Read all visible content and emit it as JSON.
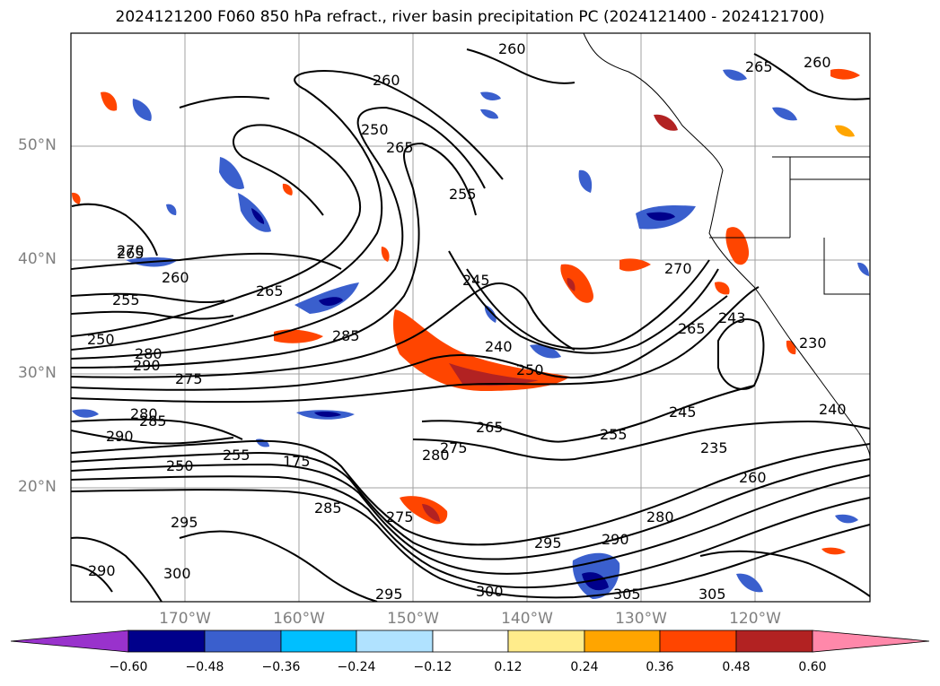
{
  "title": "2024121200 F060 850 hPa refract., river basin precipitation PC (2024121400 - 2024121700)",
  "lat_labels": [
    "50°N",
    "40°N",
    "30°N",
    "20°N"
  ],
  "lon_labels": [
    "170°W",
    "160°W",
    "150°W",
    "140°W",
    "130°W",
    "120°W"
  ],
  "contour_labels": [
    "260",
    "260",
    "265",
    "260",
    "250",
    "255",
    "265",
    "260",
    "255",
    "250",
    "280",
    "290",
    "275",
    "280",
    "285",
    "290",
    "265",
    "250",
    "255",
    "285",
    "245",
    "240",
    "250",
    "265",
    "270",
    "275",
    "280",
    "295",
    "295",
    "300",
    "290",
    "175",
    "285",
    "275",
    "295",
    "290",
    "300",
    "305",
    "305",
    "280",
    "260",
    "235",
    "245",
    "255",
    "265",
    "270",
    "265",
    "243",
    "230",
    "240"
  ],
  "colorbar": {
    "ticks": [
      "−0.60",
      "−0.48",
      "−0.36",
      "−0.24",
      "−0.12",
      "0.12",
      "0.24",
      "0.36",
      "0.48",
      "0.60"
    ],
    "colors": [
      "#9932cc",
      "#00008b",
      "#3a5fcd",
      "#00bfff",
      "#b0e2ff",
      "#ffffff",
      "#ffec8b",
      "#ffa500",
      "#ff4500",
      "#b22222",
      "#ff88aa"
    ]
  }
}
